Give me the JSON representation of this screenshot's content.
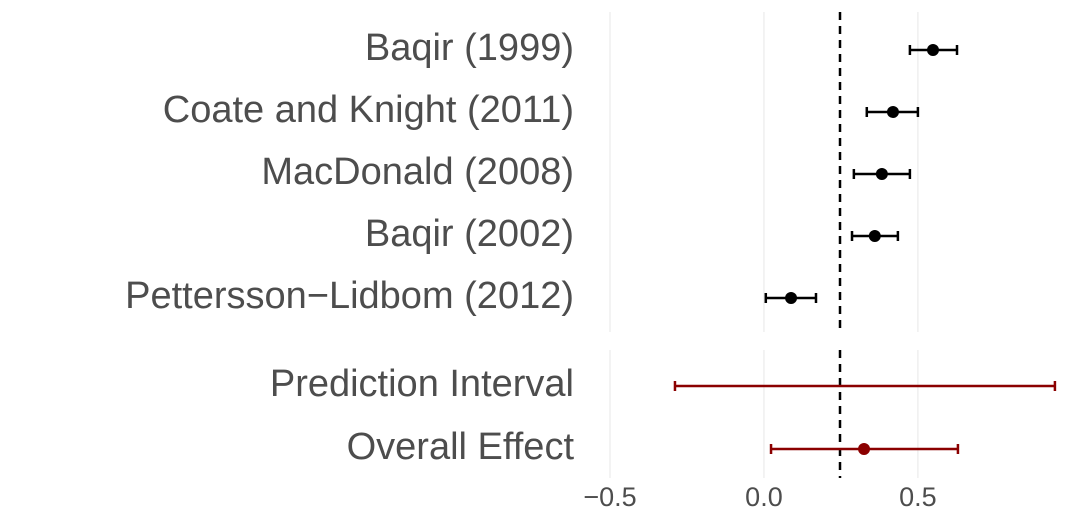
{
  "chart_data": {
    "type": "forest",
    "groups": [
      {
        "categories": [
          "Baqir (1999)",
          "Coate and Knight (2011)",
          "MacDonald (2008)",
          "Baqir (2002)",
          "Pettersson−Lidbom (2012)"
        ],
        "values": [
          0.549,
          0.419,
          0.383,
          0.36,
          0.088
        ],
        "lower": [
          0.474,
          0.334,
          0.292,
          0.286,
          0.006
        ],
        "upper": [
          0.627,
          0.5,
          0.474,
          0.435,
          0.169
        ],
        "color": "#000000"
      },
      {
        "categories": [
          "Prediction Interval",
          "Overall Effect"
        ],
        "values": [
          null,
          0.325
        ],
        "lower": [
          -0.289,
          0.023
        ],
        "upper": [
          0.945,
          0.63
        ],
        "color": "#8b0000"
      }
    ],
    "ref_line": 0.247,
    "xlim": [
      -0.5,
      0.955
    ],
    "xticks": [
      {
        "value": -0.5,
        "label": "−0.5"
      },
      {
        "value": 0,
        "label": "0.0"
      },
      0.5
    ],
    "grid": true
  }
}
